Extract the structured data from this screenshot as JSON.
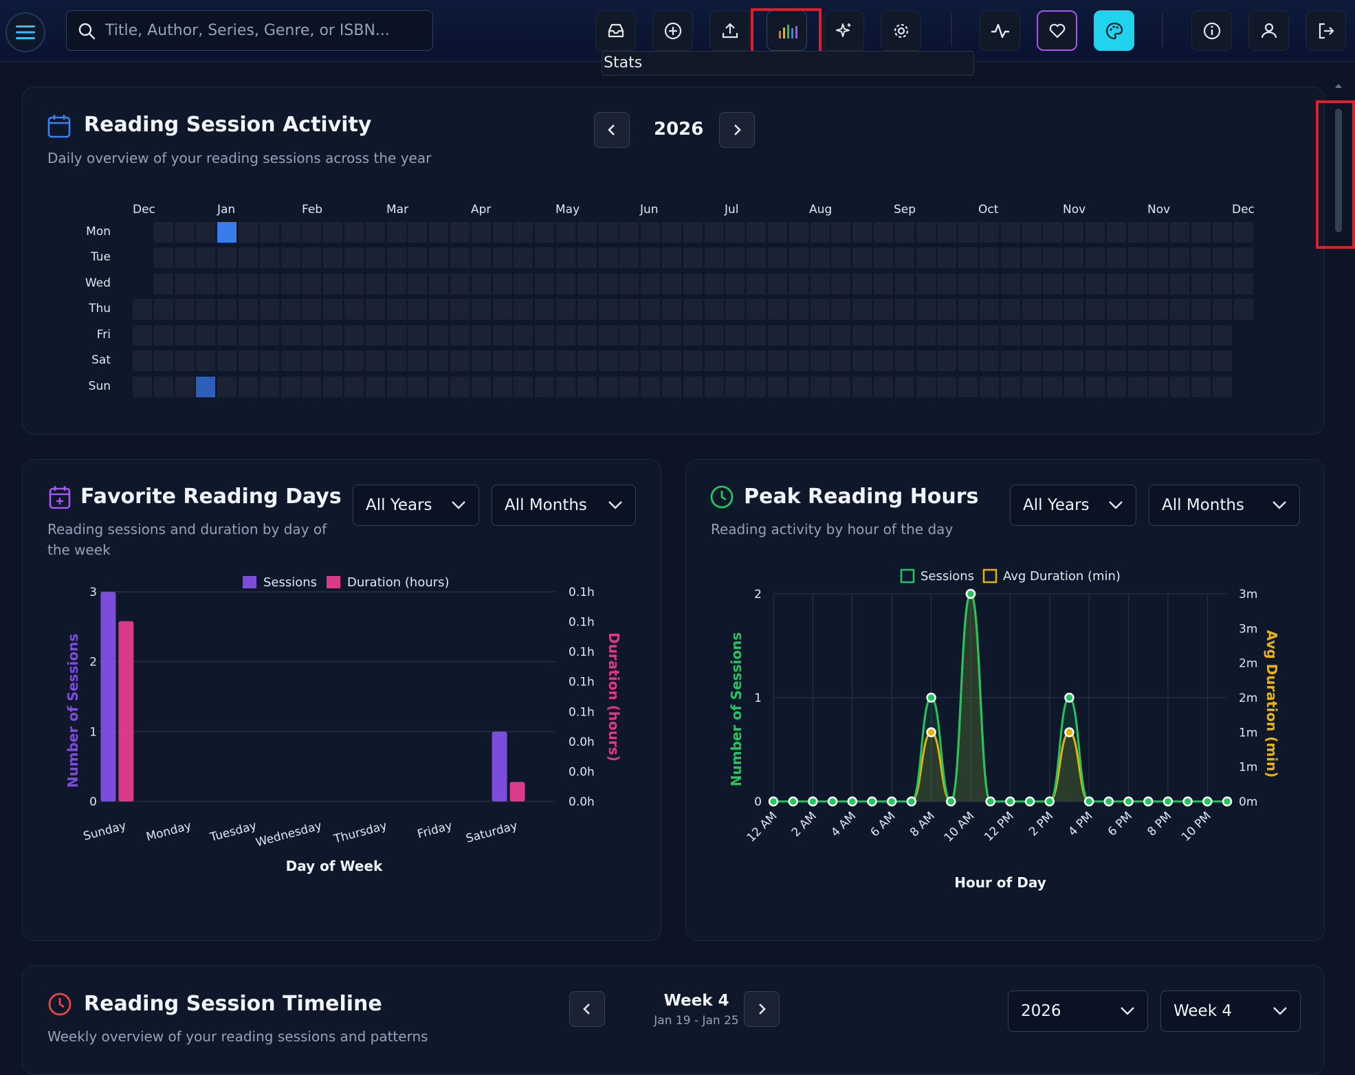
{
  "topbar": {
    "search_placeholder": "Title, Author, Series, Genre, or ISBN...",
    "tooltip": "Stats",
    "buttons": [
      "inbox-icon",
      "add-icon",
      "upload-icon",
      "stats-icon",
      "sparkle-icon",
      "gear-icon",
      "activity-icon",
      "heart-icon",
      "palette-icon",
      "info-icon",
      "user-icon",
      "logout-icon"
    ]
  },
  "activity": {
    "title": "Reading Session Activity",
    "subtitle": "Daily overview of your reading sessions across the year",
    "year": "2026",
    "months": [
      "Dec",
      "Jan",
      "Feb",
      "Mar",
      "Apr",
      "May",
      "Jun",
      "Jul",
      "Aug",
      "Sep",
      "Oct",
      "Nov",
      "Nov",
      "Dec"
    ],
    "days": [
      "Mon",
      "Tue",
      "Wed",
      "Thu",
      "Fri",
      "Sat",
      "Sun"
    ]
  },
  "fav_days": {
    "title": "Favorite Reading Days",
    "subtitle": "Reading sessions and duration by day of the week",
    "year_select": "All Years",
    "month_select": "All Months",
    "legend_sessions": "Sessions",
    "legend_duration": "Duration (hours)",
    "xlabel": "Day of Week",
    "ylabel_left": "Number of Sessions",
    "ylabel_right": "Duration (hours)",
    "left_ticks": [
      "3",
      "2",
      "1",
      "0"
    ],
    "right_ticks": [
      "0.1h",
      "0.1h",
      "0.1h",
      "0.1h",
      "0.1h",
      "0.0h",
      "0.0h",
      "0.0h"
    ]
  },
  "peak_hours": {
    "title": "Peak Reading Hours",
    "subtitle": "Reading activity by hour of the day",
    "year_select": "All Years",
    "month_select": "All Months",
    "legend_sessions": "Sessions",
    "legend_duration": "Avg Duration (min)",
    "xlabel": "Hour of Day",
    "ylabel_left": "Number of Sessions",
    "ylabel_right": "Avg Duration (min)",
    "left_ticks": [
      "2",
      "1",
      "0"
    ],
    "right_ticks": [
      "3m",
      "3m",
      "2m",
      "2m",
      "1m",
      "1m",
      "0m"
    ]
  },
  "timeline": {
    "title": "Reading Session Timeline",
    "subtitle": "Weekly overview of your reading sessions and patterns",
    "week": "Week 4",
    "range": "Jan 19 - Jan 25",
    "year_select": "2026",
    "week_select": "Week 4"
  },
  "chart_data": [
    {
      "type": "bar",
      "categories": [
        "Sunday",
        "Monday",
        "Tuesday",
        "Wednesday",
        "Thursday",
        "Friday",
        "Saturday"
      ],
      "series": [
        {
          "name": "Sessions",
          "values": [
            3,
            0,
            0,
            0,
            0,
            0,
            1
          ],
          "color": "#7c4ddb"
        },
        {
          "name": "Duration (hours)",
          "values": [
            0.148,
            0,
            0,
            0,
            0,
            0,
            0.016
          ],
          "color": "#db3a8b"
        }
      ],
      "xlabel": "Day of Week",
      "ylabel": "Number of Sessions",
      "y2label": "Duration (hours)",
      "ylim": [
        0,
        3
      ],
      "legend": "top"
    },
    {
      "type": "line",
      "x": [
        "12 AM",
        "1 AM",
        "2 AM",
        "3 AM",
        "4 AM",
        "5 AM",
        "6 AM",
        "7 AM",
        "8 AM",
        "9 AM",
        "10 AM",
        "11 AM",
        "12 PM",
        "1 PM",
        "2 PM",
        "3 PM",
        "4 PM",
        "5 PM",
        "6 PM",
        "7 PM",
        "8 PM",
        "9 PM",
        "10 PM",
        "11 PM"
      ],
      "tick_labels": [
        "12 AM",
        "2 AM",
        "4 AM",
        "6 AM",
        "8 AM",
        "10 AM",
        "12 PM",
        "2 PM",
        "4 PM",
        "6 PM",
        "8 PM",
        "10 PM"
      ],
      "series": [
        {
          "name": "Sessions",
          "values": [
            0,
            0,
            0,
            0,
            0,
            0,
            0,
            0,
            1,
            0,
            2,
            0,
            0,
            0,
            0,
            1,
            0,
            0,
            0,
            0,
            0,
            0,
            0,
            0
          ],
          "color": "#22c55e"
        },
        {
          "name": "Avg Duration (min)",
          "values": [
            0,
            0,
            0,
            0,
            0,
            0,
            0,
            0,
            1.0,
            0,
            3.0,
            0,
            0,
            0,
            0,
            1.0,
            0,
            0,
            0,
            0,
            0,
            0,
            0,
            0
          ],
          "color": "#eab308"
        }
      ],
      "xlabel": "Hour of Day",
      "ylabel": "Number of Sessions",
      "y2label": "Avg Duration (min)",
      "ylim": [
        0,
        2
      ],
      "legend": "top"
    }
  ]
}
